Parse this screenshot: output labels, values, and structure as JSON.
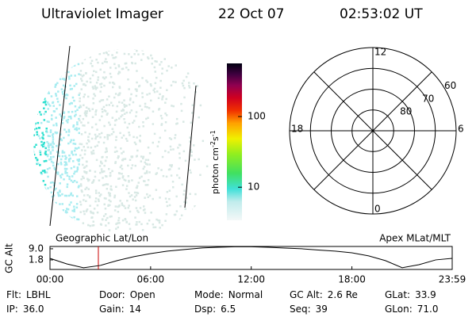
{
  "header": {
    "title": "Ultraviolet Imager",
    "date": "22 Oct 07",
    "time": "02:53:02 UT"
  },
  "colorbar": {
    "label": [
      "photon cm",
      "-2",
      "s",
      "-1"
    ],
    "scale": "log",
    "clim": [
      3.4,
      565
    ],
    "ticks": [
      10,
      100
    ]
  },
  "polar": {
    "type": "polar",
    "rlim": [
      90,
      50
    ],
    "rings": [
      80,
      70,
      60
    ],
    "angle_ticks": [
      12,
      6,
      0,
      18
    ]
  },
  "chart_data": {
    "type": "line",
    "left_label": "Geographic Lat/Lon",
    "right_label": "Apex MLat/MLT",
    "ylabel": "GC Alt",
    "x": [
      0,
      1,
      2,
      3,
      4,
      5,
      6,
      7,
      8,
      9,
      10,
      11,
      12,
      13,
      14,
      15,
      16,
      17,
      18,
      19,
      20,
      21,
      22,
      23,
      23.98
    ],
    "values": [
      2.8,
      -0.8,
      -3.3,
      -1.8,
      1.3,
      3.9,
      5.9,
      7.5,
      8.5,
      9.5,
      10,
      10.3,
      10.3,
      10,
      9.5,
      9,
      8.2,
      7.5,
      6.4,
      4.4,
      1.3,
      -3.3,
      -1.3,
      1.8,
      2.8
    ],
    "color": "#000000",
    "xlim": [
      0,
      23.98
    ],
    "xticks": [
      {
        "value": 0,
        "label": "00:00"
      },
      {
        "value": 6,
        "label": "06:00"
      },
      {
        "value": 12,
        "label": "12:00"
      },
      {
        "value": 18,
        "label": "18:00"
      },
      {
        "value": 23.98,
        "label": "23:59"
      }
    ],
    "ylim": [
      -4.4,
      10.5
    ],
    "yticks": [
      {
        "value": 9,
        "label": "9.0"
      },
      1.8
    ],
    "marker": {
      "x": 2.884,
      "color": "#cc0000"
    }
  },
  "status": [
    [
      {
        "label": "Flt:",
        "value": "LBHL"
      },
      {
        "label": "Door:",
        "value": "Open"
      },
      {
        "label": "Mode:",
        "value": "Normal"
      },
      {
        "label": "GC Alt:",
        "value": "2.6 Re"
      },
      {
        "label": "GLat:",
        "value": "33.9"
      }
    ],
    [
      {
        "label": "IP:",
        "value": "36.0"
      },
      {
        "label": "Gain:",
        "value": "14"
      },
      {
        "label": "Dsp:",
        "value": "6.5"
      },
      {
        "label": "Seq:",
        "value": "39"
      },
      {
        "label": "GLon:",
        "value": "71.0"
      }
    ]
  ]
}
